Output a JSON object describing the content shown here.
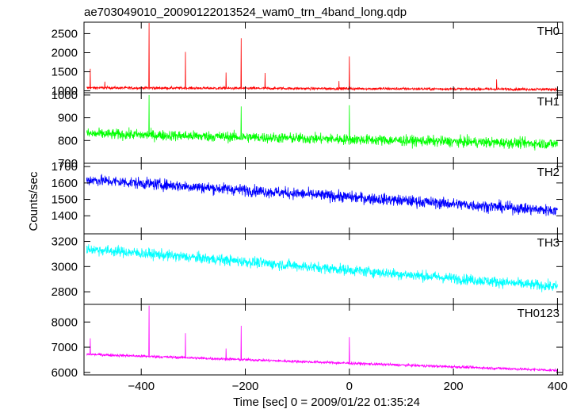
{
  "chart_data": {
    "type": "line",
    "title": "ae703049010_20090122013524_wam0_trn_4band_long.qdp",
    "xlabel": "Time [sec] 0 = 2009/01/22 01:35:24",
    "ylabel": "Counts/sec",
    "xlim": [
      -510,
      410
    ],
    "xticks": [
      -400,
      -200,
      0,
      200,
      400
    ],
    "xtick_labels": [
      "−400",
      "−200",
      "0",
      "200",
      "400"
    ],
    "panels": [
      {
        "name": "TH0",
        "color": "#ff0000",
        "ylim": [
          950,
          2800
        ],
        "yticks": [
          1000,
          1500,
          2000,
          2500
        ],
        "baseline": [
          [
            -505,
            1080
          ],
          [
            400,
            1040
          ]
        ],
        "noise": 45,
        "spikes": [
          {
            "t": -498,
            "v": 1580
          },
          {
            "t": -470,
            "v": 1240
          },
          {
            "t": -385,
            "v": 2780
          },
          {
            "t": -315,
            "v": 2020
          },
          {
            "t": -237,
            "v": 1480
          },
          {
            "t": -208,
            "v": 2380
          },
          {
            "t": -162,
            "v": 1470
          },
          {
            "t": -20,
            "v": 1260
          },
          {
            "t": 0,
            "v": 1900
          },
          {
            "t": 283,
            "v": 1300
          }
        ]
      },
      {
        "name": "TH1",
        "color": "#00ff00",
        "ylim": [
          700,
          1010
        ],
        "yticks": [
          700,
          800,
          900,
          1000
        ],
        "baseline": [
          [
            -505,
            830
          ],
          [
            400,
            785
          ]
        ],
        "noise": 30,
        "spikes": [
          {
            "t": -385,
            "v": 1000
          },
          {
            "t": -208,
            "v": 950
          },
          {
            "t": 0,
            "v": 955
          }
        ]
      },
      {
        "name": "TH2",
        "color": "#0000ff",
        "ylim": [
          1290,
          1720
        ],
        "yticks": [
          1400,
          1500,
          1600,
          1700
        ],
        "baseline": [
          [
            -505,
            1620
          ],
          [
            400,
            1430
          ]
        ],
        "noise": 45,
        "spikes": []
      },
      {
        "name": "TH3",
        "color": "#00ffff",
        "ylim": [
          2700,
          3260
        ],
        "yticks": [
          2800,
          3000,
          3200
        ],
        "baseline": [
          [
            -505,
            3140
          ],
          [
            400,
            2840
          ]
        ],
        "noise": 55,
        "spikes": []
      },
      {
        "name": "TH0123",
        "color": "#ff00ff",
        "ylim": [
          5900,
          8700
        ],
        "yticks": [
          6000,
          7000,
          8000
        ],
        "baseline": [
          [
            -505,
            6720
          ],
          [
            400,
            6080
          ]
        ],
        "noise": 70,
        "spikes": [
          {
            "t": -498,
            "v": 7350
          },
          {
            "t": -385,
            "v": 8650
          },
          {
            "t": -315,
            "v": 7560
          },
          {
            "t": -237,
            "v": 6950
          },
          {
            "t": -208,
            "v": 7850
          },
          {
            "t": 0,
            "v": 7400
          }
        ]
      }
    ]
  }
}
